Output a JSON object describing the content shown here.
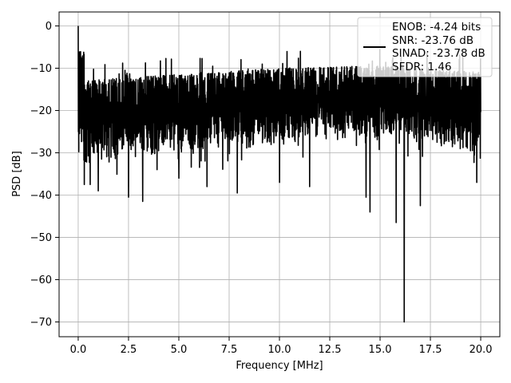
{
  "chart_data": {
    "type": "line",
    "title": "",
    "xlabel": "Frequency [MHz]",
    "ylabel": "PSD [dB]",
    "xlim": [
      -0.95,
      20.95
    ],
    "ylim": [
      -73.5,
      3.3
    ],
    "grid": true,
    "x_ticks": [
      0.0,
      2.5,
      5.0,
      7.5,
      10.0,
      12.5,
      15.0,
      17.5,
      20.0
    ],
    "x_tick_labels": [
      "0.0",
      "2.5",
      "5.0",
      "7.5",
      "10.0",
      "12.5",
      "15.0",
      "17.5",
      "20.0"
    ],
    "y_ticks": [
      0,
      -10,
      -20,
      -30,
      -40,
      -50,
      -60,
      -70
    ],
    "y_tick_labels": [
      "0",
      "−10",
      "−20",
      "−30",
      "−40",
      "−50",
      "−60",
      "−70"
    ],
    "legend": {
      "placement": "top-right",
      "entries": [
        "ENOB: -4.24 bits",
        "SNR: -23.76 dB",
        "SINAD: -23.78 dB",
        "SFDR: 1.46"
      ]
    },
    "series": [
      {
        "color": "#000000",
        "x_start": 0.0,
        "x_end": 20.0,
        "points": 2048,
        "peak": {
          "x": 0.0,
          "y": 0.0
        },
        "low_freq_floor": {
          "x_max": 0.3,
          "y": -6.0
        },
        "band_upper_trend": [
          [
            0.0,
            -13.0
          ],
          [
            5.0,
            -11.5
          ],
          [
            10.0,
            -10.0
          ],
          [
            15.0,
            -9.5
          ],
          [
            20.0,
            -11.0
          ]
        ],
        "band_lower_trend": [
          [
            0.0,
            -33.0
          ],
          [
            5.0,
            -30.0
          ],
          [
            10.0,
            -28.0
          ],
          [
            15.0,
            -27.0
          ],
          [
            20.0,
            -30.0
          ]
        ],
        "deep_dips": [
          {
            "x": 0.3,
            "y": -37.5
          },
          {
            "x": 0.6,
            "y": -37.5
          },
          {
            "x": 1.0,
            "y": -39.0
          },
          {
            "x": 2.5,
            "y": -40.5
          },
          {
            "x": 3.2,
            "y": -41.5
          },
          {
            "x": 5.0,
            "y": -36.0
          },
          {
            "x": 6.4,
            "y": -38.0
          },
          {
            "x": 7.9,
            "y": -39.5
          },
          {
            "x": 10.0,
            "y": -37.0
          },
          {
            "x": 11.5,
            "y": -38.0
          },
          {
            "x": 14.3,
            "y": -40.5
          },
          {
            "x": 14.5,
            "y": -44.0
          },
          {
            "x": 15.8,
            "y": -46.5
          },
          {
            "x": 16.2,
            "y": -70.0
          },
          {
            "x": 17.0,
            "y": -42.5
          },
          {
            "x": 19.8,
            "y": -37.0
          }
        ]
      }
    ]
  }
}
